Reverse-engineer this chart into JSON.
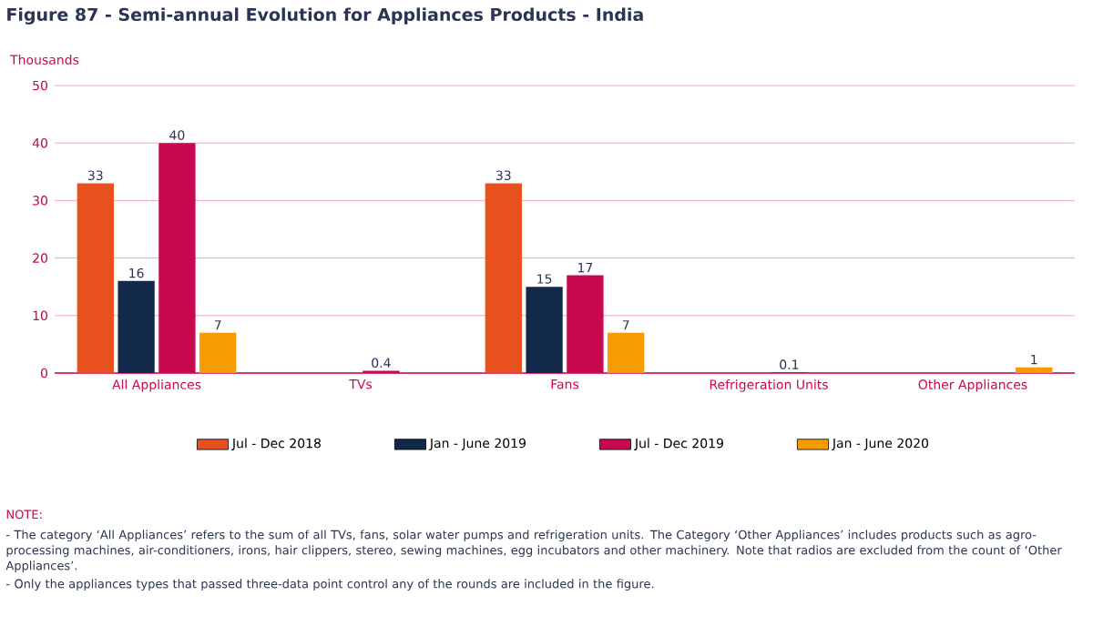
{
  "chart_data": {
    "type": "bar",
    "title": "Figure 87 - Semi-annual Evolution for Appliances Products - India",
    "ylabel": "Thousands",
    "categories": [
      "All Appliances",
      "TVs",
      "Fans",
      "Refrigeration Units",
      "Other Appliances"
    ],
    "series": [
      {
        "name": "Jul - Dec 2018",
        "color": "#e8501e",
        "values": [
          33,
          null,
          33,
          null,
          null
        ]
      },
      {
        "name": "Jan - June 2019",
        "color": "#13294b",
        "values": [
          16,
          null,
          15,
          null,
          null
        ]
      },
      {
        "name": "Jul - Dec 2019",
        "color": "#c8084e",
        "values": [
          40,
          0.4,
          17,
          0.1,
          null
        ]
      },
      {
        "name": "Jan - June 2020",
        "color": "#f59c00",
        "values": [
          7,
          null,
          7,
          null,
          1
        ]
      }
    ],
    "ylim": [
      0,
      50
    ],
    "yticks": [
      0,
      10,
      20,
      30,
      40,
      50
    ],
    "grid": "y",
    "legend": "bottom",
    "data_labels": true,
    "annotations": [
      "NOTE:",
      "- The category ‘All Appliances’ refers to the sum of all TVs, fans, solar water pumps and refrigeration units. The Category ‘Other Appliances’ includes products such as agro-processing machines, air-conditioners, irons, hair clippers, stereo, sewing machines, egg incubators and other machinery. Note that radios are excluded from the count of ‘Other Appliances’.",
      "- Only the appliances types that passed three-data point control any of the rounds are included in the figure."
    ]
  }
}
